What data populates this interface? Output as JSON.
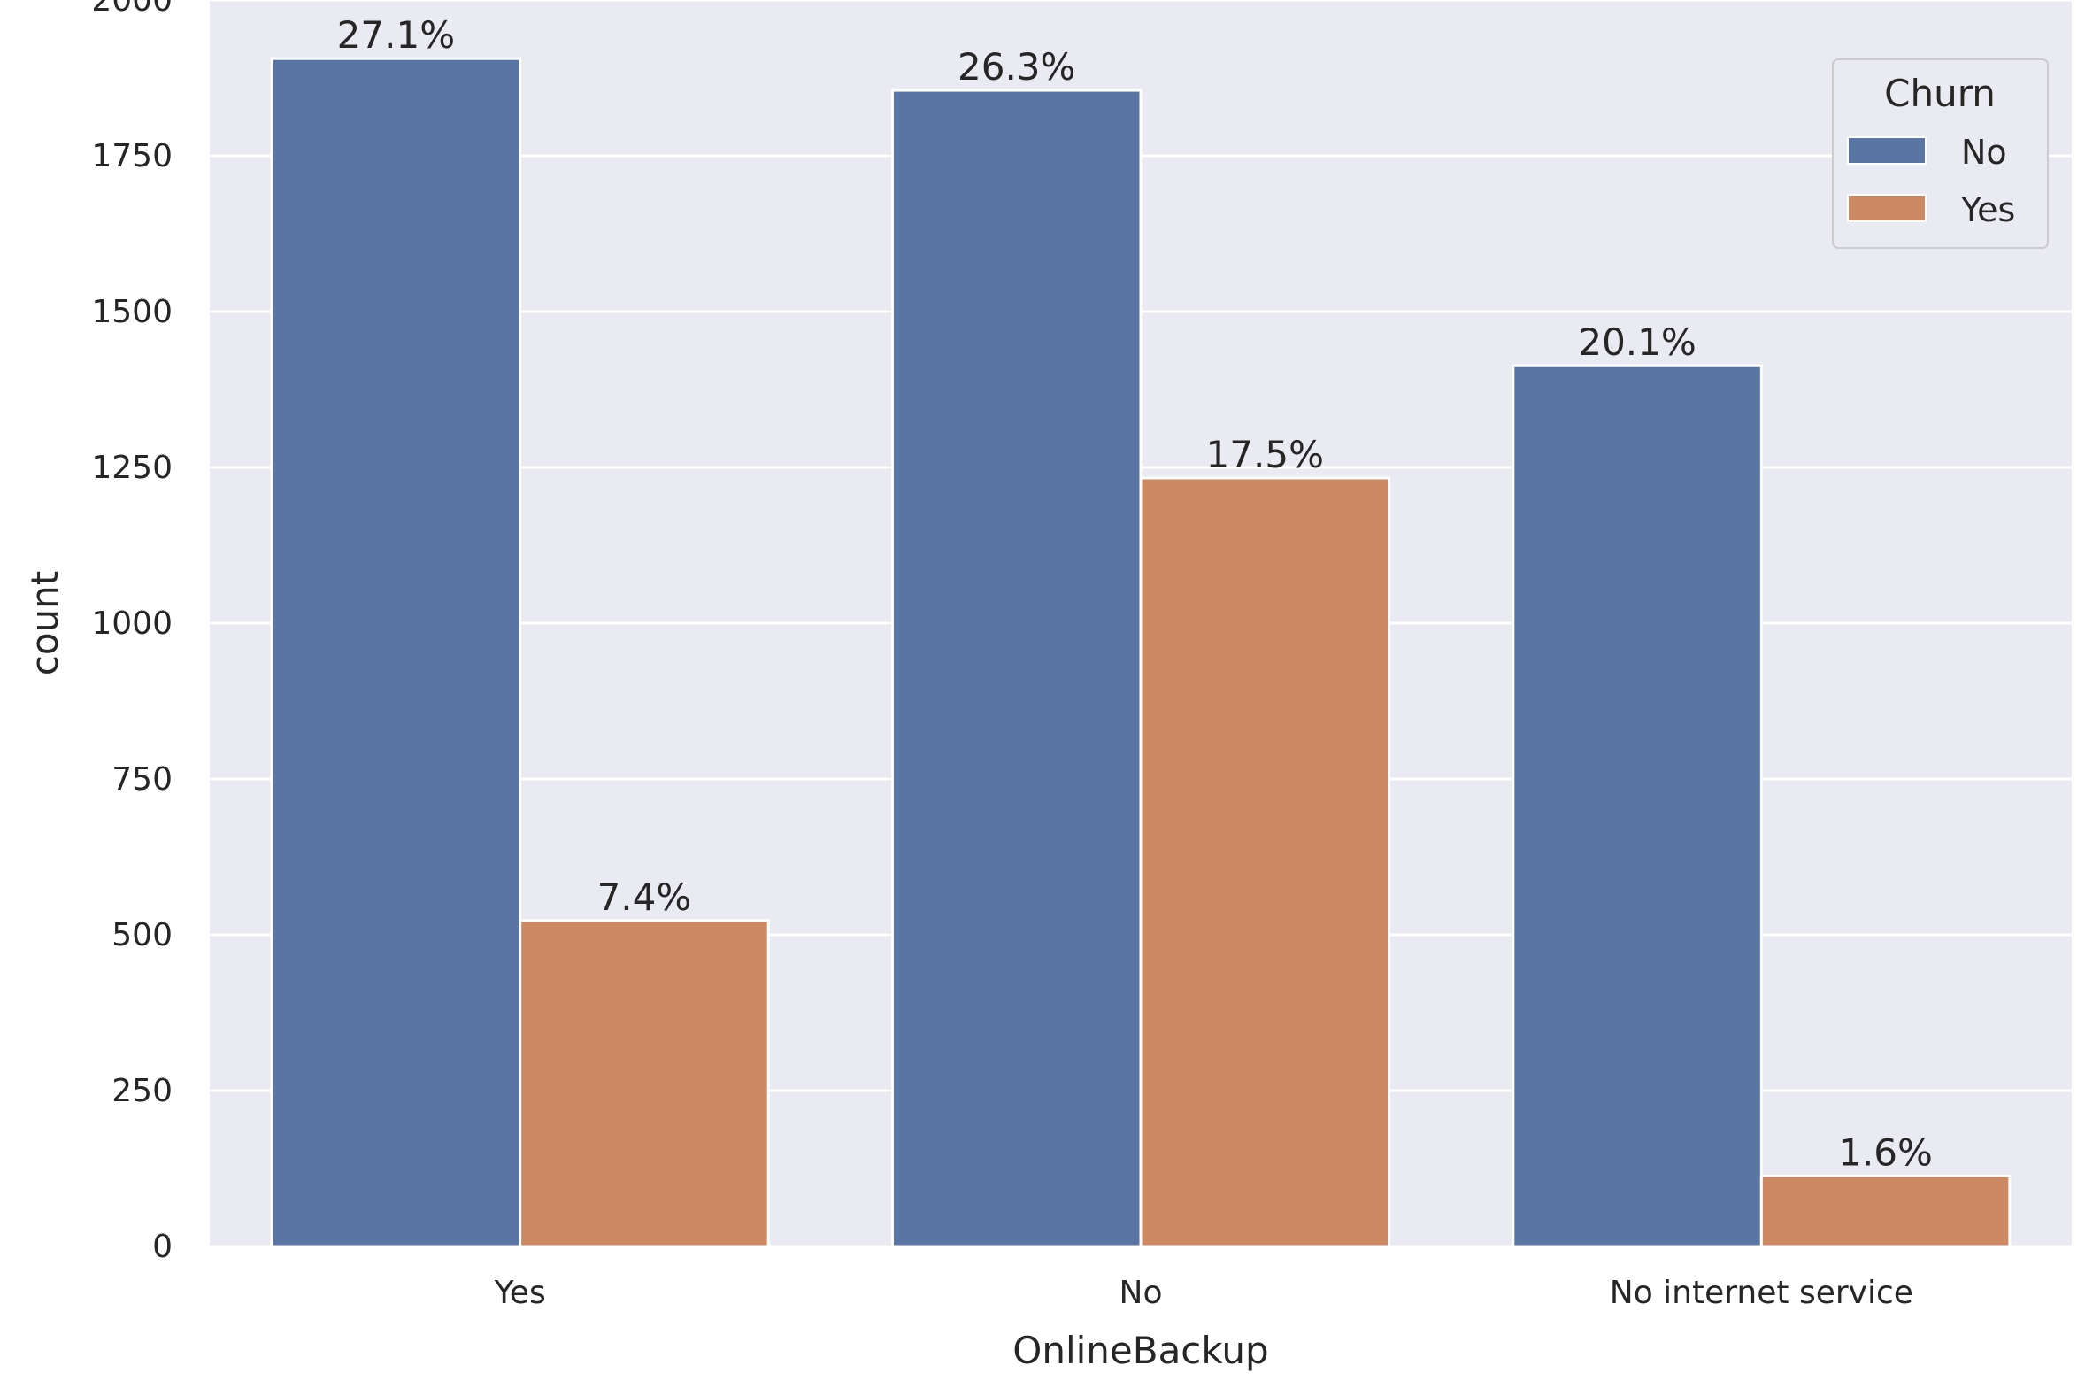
{
  "chart_data": {
    "type": "bar",
    "title": "",
    "xlabel": "OnlineBackup",
    "ylabel": "count",
    "categories": [
      "Yes",
      "No",
      "No internet service"
    ],
    "series": [
      {
        "name": "No",
        "color": "#5975a4",
        "values": [
          1906,
          1855,
          1413
        ],
        "labels": [
          "27.1%",
          "26.3%",
          "20.1%"
        ]
      },
      {
        "name": "Yes",
        "color": "#cc8963",
        "values": [
          523,
          1233,
          113
        ],
        "labels": [
          "7.4%",
          "17.5%",
          "1.6%"
        ]
      }
    ],
    "ylim": [
      0,
      2000
    ],
    "yticks": [
      0,
      250,
      500,
      750,
      1000,
      1250,
      1500,
      1750,
      2000
    ],
    "grid": true,
    "legend": {
      "title": "Churn",
      "placement": "top-right"
    },
    "background": "#eaeaf2"
  }
}
